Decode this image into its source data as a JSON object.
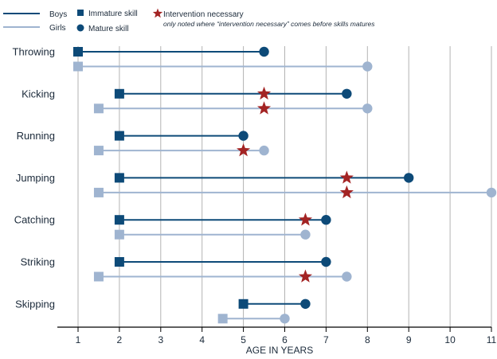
{
  "colors": {
    "boys": "#0d4a78",
    "girls": "#9fb4d0",
    "intervention": "#a32424",
    "grid": "#b3b3b3"
  },
  "legend": {
    "boys": "Boys",
    "girls": "Girls",
    "immature": "Immature skill",
    "mature": "Mature skill",
    "intervention": "Intervention necessary",
    "note": "only noted where “intervention necessary” comes before skills matures"
  },
  "chart_data": {
    "type": "dumbbell",
    "xlabel": "AGE IN YEARS",
    "xlim": [
      1,
      11
    ],
    "xticks": [
      1,
      2,
      3,
      4,
      5,
      6,
      7,
      8,
      9,
      10,
      11
    ],
    "grid": "vertical",
    "legend_position": "top-left",
    "series": [
      {
        "name": "Boys",
        "color": "#0d4a78"
      },
      {
        "name": "Girls",
        "color": "#9fb4d0"
      }
    ],
    "skills": [
      {
        "name": "Throwing",
        "boys": {
          "immature": 1,
          "mature": 5.5,
          "intervention": null
        },
        "girls": {
          "immature": 1,
          "mature": 8,
          "intervention": null
        }
      },
      {
        "name": "Kicking",
        "boys": {
          "immature": 2,
          "mature": 7.5,
          "intervention": 5.5
        },
        "girls": {
          "immature": 1.5,
          "mature": 8,
          "intervention": 5.5
        }
      },
      {
        "name": "Running",
        "boys": {
          "immature": 2,
          "mature": 5,
          "intervention": null
        },
        "girls": {
          "immature": 1.5,
          "mature": 5.5,
          "intervention": 5
        }
      },
      {
        "name": "Jumping",
        "boys": {
          "immature": 2,
          "mature": 9,
          "intervention": 7.5
        },
        "girls": {
          "immature": 1.5,
          "mature": 11,
          "intervention": 7.5
        }
      },
      {
        "name": "Catching",
        "boys": {
          "immature": 2,
          "mature": 7,
          "intervention": 6.5
        },
        "girls": {
          "immature": 2,
          "mature": 6.5,
          "intervention": null
        }
      },
      {
        "name": "Striking",
        "boys": {
          "immature": 2,
          "mature": 7,
          "intervention": null
        },
        "girls": {
          "immature": 1.5,
          "mature": 7.5,
          "intervention": 6.5
        }
      },
      {
        "name": "Skipping",
        "boys": {
          "immature": 5,
          "mature": 6.5,
          "intervention": null
        },
        "girls": {
          "immature": 4.5,
          "mature": 6,
          "intervention": null
        }
      }
    ]
  }
}
